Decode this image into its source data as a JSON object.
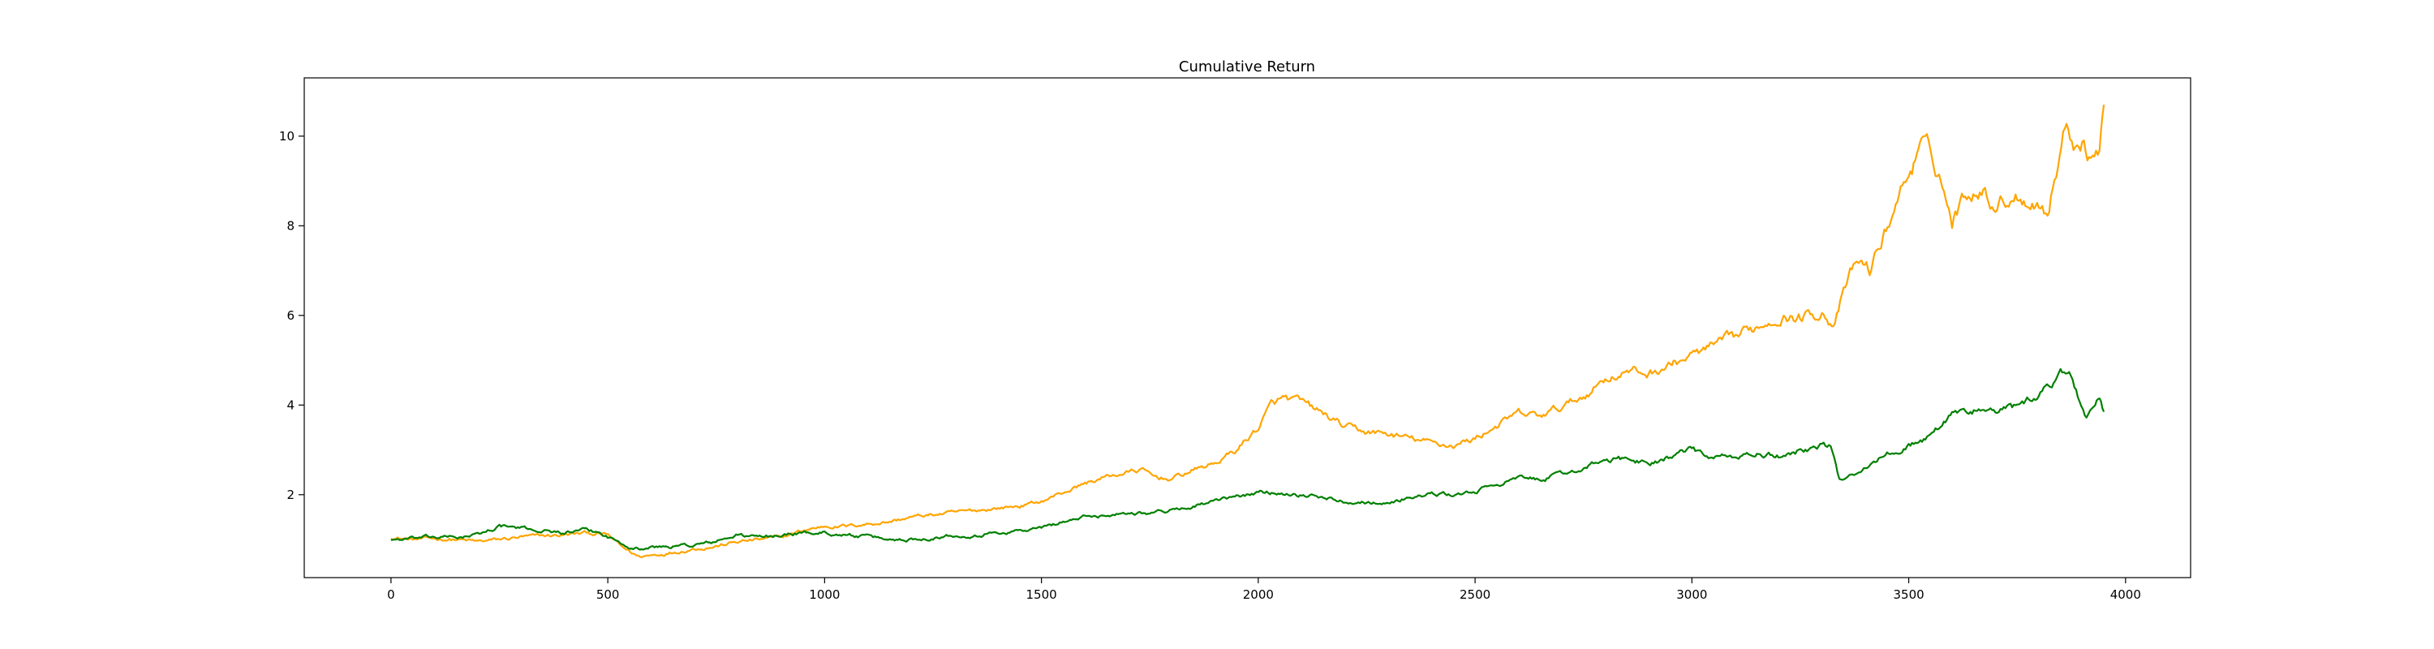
{
  "chart_data": {
    "type": "line",
    "title": "Cumulative Return",
    "xlabel": "",
    "ylabel": "",
    "xlim": [
      -200,
      4150
    ],
    "ylim": [
      0.15,
      11.3
    ],
    "x_ticks": [
      0,
      500,
      1000,
      1500,
      2000,
      2500,
      3000,
      3500,
      4000
    ],
    "y_ticks": [
      2,
      4,
      6,
      8,
      10
    ],
    "grid": false,
    "legend": "none",
    "series": [
      {
        "color": "#ffa500",
        "points": [
          [
            0,
            1.05
          ],
          [
            50,
            1.0
          ],
          [
            100,
            1.02
          ],
          [
            150,
            1.0
          ],
          [
            200,
            0.95
          ],
          [
            250,
            1.0
          ],
          [
            300,
            1.05
          ],
          [
            350,
            1.08
          ],
          [
            400,
            1.1
          ],
          [
            450,
            1.15
          ],
          [
            500,
            1.1
          ],
          [
            530,
            0.85
          ],
          [
            570,
            0.62
          ],
          [
            600,
            0.65
          ],
          [
            650,
            0.72
          ],
          [
            700,
            0.8
          ],
          [
            750,
            0.85
          ],
          [
            800,
            0.95
          ],
          [
            850,
            1.0
          ],
          [
            900,
            1.05
          ],
          [
            950,
            1.2
          ],
          [
            1000,
            1.3
          ],
          [
            1050,
            1.3
          ],
          [
            1100,
            1.35
          ],
          [
            1150,
            1.4
          ],
          [
            1200,
            1.5
          ],
          [
            1250,
            1.55
          ],
          [
            1300,
            1.6
          ],
          [
            1350,
            1.65
          ],
          [
            1400,
            1.7
          ],
          [
            1450,
            1.75
          ],
          [
            1500,
            1.85
          ],
          [
            1550,
            2.05
          ],
          [
            1600,
            2.25
          ],
          [
            1650,
            2.4
          ],
          [
            1700,
            2.5
          ],
          [
            1730,
            2.55
          ],
          [
            1760,
            2.4
          ],
          [
            1800,
            2.35
          ],
          [
            1850,
            2.55
          ],
          [
            1900,
            2.7
          ],
          [
            1950,
            3.0
          ],
          [
            2000,
            3.5
          ],
          [
            2030,
            4.0
          ],
          [
            2060,
            4.15
          ],
          [
            2100,
            4.05
          ],
          [
            2150,
            3.8
          ],
          [
            2200,
            3.5
          ],
          [
            2250,
            3.4
          ],
          [
            2300,
            3.35
          ],
          [
            2350,
            3.25
          ],
          [
            2400,
            3.15
          ],
          [
            2450,
            3.1
          ],
          [
            2500,
            3.25
          ],
          [
            2550,
            3.55
          ],
          [
            2600,
            3.8
          ],
          [
            2650,
            3.75
          ],
          [
            2700,
            3.95
          ],
          [
            2750,
            4.2
          ],
          [
            2800,
            4.6
          ],
          [
            2850,
            4.75
          ],
          [
            2900,
            4.7
          ],
          [
            2950,
            4.9
          ],
          [
            3000,
            5.1
          ],
          [
            3050,
            5.3
          ],
          [
            3100,
            5.5
          ],
          [
            3150,
            5.75
          ],
          [
            3200,
            6.0
          ],
          [
            3250,
            5.95
          ],
          [
            3300,
            6.1
          ],
          [
            3330,
            5.8
          ],
          [
            3350,
            6.5
          ],
          [
            3380,
            7.2
          ],
          [
            3410,
            7.0
          ],
          [
            3440,
            7.7
          ],
          [
            3470,
            8.5
          ],
          [
            3500,
            9.2
          ],
          [
            3530,
            9.75
          ],
          [
            3550,
            9.6
          ],
          [
            3570,
            9.2
          ],
          [
            3600,
            8.1
          ],
          [
            3630,
            8.7
          ],
          [
            3660,
            8.9
          ],
          [
            3700,
            8.5
          ],
          [
            3750,
            8.7
          ],
          [
            3800,
            8.5
          ],
          [
            3820,
            8.3
          ],
          [
            3840,
            9.2
          ],
          [
            3860,
            10.2
          ],
          [
            3880,
            9.9
          ],
          [
            3900,
            10.0
          ],
          [
            3920,
            9.5
          ],
          [
            3940,
            9.8
          ],
          [
            3950,
            10.7
          ]
        ]
      },
      {
        "color": "#008000",
        "points": [
          [
            0,
            1.0
          ],
          [
            50,
            1.02
          ],
          [
            100,
            1.05
          ],
          [
            150,
            1.05
          ],
          [
            200,
            1.1
          ],
          [
            250,
            1.3
          ],
          [
            300,
            1.25
          ],
          [
            350,
            1.2
          ],
          [
            400,
            1.15
          ],
          [
            450,
            1.2
          ],
          [
            480,
            1.15
          ],
          [
            500,
            1.05
          ],
          [
            540,
            0.9
          ],
          [
            570,
            0.8
          ],
          [
            600,
            0.82
          ],
          [
            650,
            0.85
          ],
          [
            700,
            0.88
          ],
          [
            750,
            0.95
          ],
          [
            800,
            1.1
          ],
          [
            850,
            1.05
          ],
          [
            900,
            1.1
          ],
          [
            950,
            1.15
          ],
          [
            1000,
            1.15
          ],
          [
            1050,
            1.1
          ],
          [
            1100,
            1.05
          ],
          [
            1150,
            1.0
          ],
          [
            1200,
            1.0
          ],
          [
            1250,
            1.05
          ],
          [
            1300,
            1.1
          ],
          [
            1350,
            1.1
          ],
          [
            1400,
            1.15
          ],
          [
            1450,
            1.2
          ],
          [
            1500,
            1.25
          ],
          [
            1550,
            1.4
          ],
          [
            1600,
            1.5
          ],
          [
            1650,
            1.55
          ],
          [
            1700,
            1.6
          ],
          [
            1750,
            1.6
          ],
          [
            1800,
            1.65
          ],
          [
            1850,
            1.75
          ],
          [
            1900,
            1.85
          ],
          [
            1950,
            1.95
          ],
          [
            2000,
            2.05
          ],
          [
            2050,
            2.05
          ],
          [
            2100,
            2.0
          ],
          [
            2150,
            1.95
          ],
          [
            2200,
            1.85
          ],
          [
            2250,
            1.85
          ],
          [
            2300,
            1.8
          ],
          [
            2350,
            1.95
          ],
          [
            2400,
            2.0
          ],
          [
            2450,
            2.0
          ],
          [
            2500,
            2.05
          ],
          [
            2550,
            2.25
          ],
          [
            2600,
            2.35
          ],
          [
            2650,
            2.35
          ],
          [
            2700,
            2.45
          ],
          [
            2750,
            2.6
          ],
          [
            2800,
            2.75
          ],
          [
            2850,
            2.8
          ],
          [
            2900,
            2.7
          ],
          [
            2950,
            2.85
          ],
          [
            3000,
            3.0
          ],
          [
            3050,
            2.8
          ],
          [
            3100,
            2.85
          ],
          [
            3150,
            2.9
          ],
          [
            3200,
            2.85
          ],
          [
            3250,
            3.0
          ],
          [
            3300,
            3.1
          ],
          [
            3320,
            3.05
          ],
          [
            3340,
            2.3
          ],
          [
            3370,
            2.5
          ],
          [
            3400,
            2.6
          ],
          [
            3450,
            2.9
          ],
          [
            3500,
            3.1
          ],
          [
            3550,
            3.3
          ],
          [
            3600,
            3.8
          ],
          [
            3650,
            3.9
          ],
          [
            3700,
            3.85
          ],
          [
            3750,
            3.95
          ],
          [
            3800,
            4.2
          ],
          [
            3830,
            4.5
          ],
          [
            3850,
            4.85
          ],
          [
            3870,
            4.7
          ],
          [
            3890,
            4.2
          ],
          [
            3910,
            3.75
          ],
          [
            3930,
            4.0
          ],
          [
            3940,
            4.15
          ],
          [
            3950,
            3.85
          ]
        ]
      }
    ]
  }
}
